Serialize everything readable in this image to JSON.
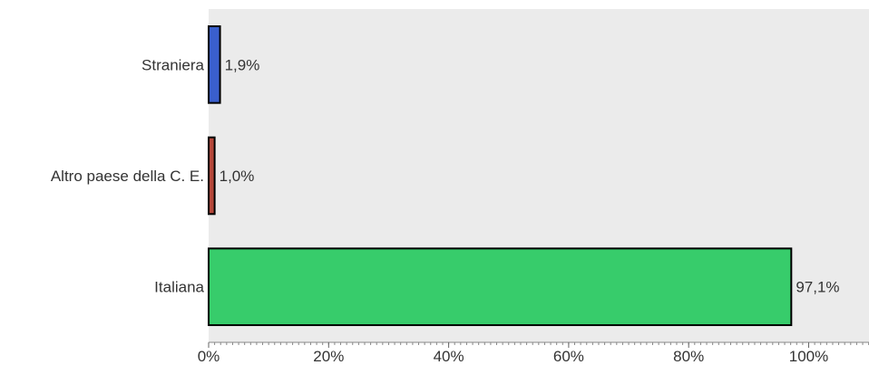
{
  "chart_data": {
    "type": "bar",
    "orientation": "horizontal",
    "categories": [
      "Straniera",
      "Altro paese della C. E.",
      "Italiana"
    ],
    "values": [
      1.9,
      1.0,
      97.1
    ],
    "value_labels": [
      "1,9%",
      "1,0%",
      "97,1%"
    ],
    "colors": [
      "#3a5fcd",
      "#b5483b",
      "#37cc6b"
    ],
    "xlim": [
      0,
      110
    ],
    "xticks": [
      0,
      20,
      40,
      60,
      80,
      100
    ],
    "xtick_labels": [
      "0%",
      "20%",
      "40%",
      "60%",
      "80%",
      "100%"
    ],
    "title": "",
    "xlabel": "",
    "ylabel": "",
    "grid": false,
    "legend": "none",
    "plot_background": "#ebebeb"
  }
}
